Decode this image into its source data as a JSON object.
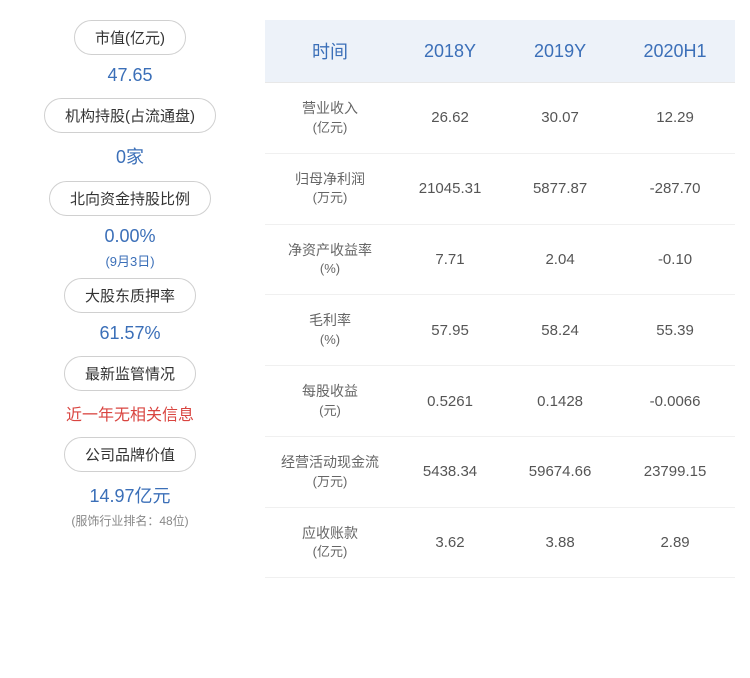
{
  "sidebar": {
    "cards": [
      {
        "label": "市值(亿元)",
        "value": "47.65",
        "value_color": "#3b6fb8"
      },
      {
        "label": "机构持股(占流通盘)",
        "value": "0家",
        "value_color": "#3b6fb8"
      },
      {
        "label": "北向资金持股比例",
        "value": "0.00%",
        "sub": "(9月3日)",
        "value_color": "#3b6fb8"
      },
      {
        "label": "大股东质押率",
        "value": "61.57%",
        "value_color": "#3b6fb8"
      },
      {
        "label": "最新监管情况",
        "value": "近一年无相关信息",
        "value_color": "#d94540"
      },
      {
        "label": "公司品牌价值",
        "value": "14.97亿元",
        "sub_gray": "(服饰行业排名：48位)",
        "value_color": "#3b6fb8"
      }
    ]
  },
  "table": {
    "columns": [
      "时间",
      "2018Y",
      "2019Y",
      "2020H1"
    ],
    "header_color": "#3b6fb8",
    "header_bg": "#edf2f9",
    "rows": [
      {
        "metric": "营业收入",
        "unit": "(亿元)",
        "values": [
          "26.62",
          "30.07",
          "12.29"
        ]
      },
      {
        "metric": "归母净利润",
        "unit": "(万元)",
        "values": [
          "21045.31",
          "5877.87",
          "-287.70"
        ]
      },
      {
        "metric": "净资产收益率",
        "unit": "(%)",
        "values": [
          "7.71",
          "2.04",
          "-0.10"
        ]
      },
      {
        "metric": "毛利率",
        "unit": "(%)",
        "values": [
          "57.95",
          "58.24",
          "55.39"
        ]
      },
      {
        "metric": "每股收益",
        "unit": "(元)",
        "values": [
          "0.5261",
          "0.1428",
          "-0.0066"
        ]
      },
      {
        "metric": "经营活动现金流",
        "unit": "(万元)",
        "values": [
          "5438.34",
          "59674.66",
          "23799.15"
        ]
      },
      {
        "metric": "应收账款",
        "unit": "(亿元)",
        "values": [
          "3.62",
          "3.88",
          "2.89"
        ]
      }
    ]
  }
}
